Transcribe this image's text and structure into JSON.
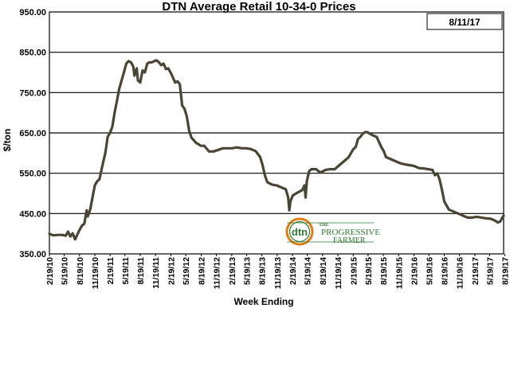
{
  "colors": {
    "line": "#4a4535",
    "grid": "#000000",
    "logo_green": "#2e7d32",
    "logo_orange": "#e07b16"
  },
  "badge": {
    "date": "8/11/17"
  },
  "logo": {
    "circle_text": "dtn",
    "brand_prefix": "THE",
    "brand_line1": "PROGRESSIVE",
    "brand_line2": "FARMER",
    "icon": "dtn-progressive-farmer-logo"
  },
  "chart_data": {
    "type": "line",
    "title": "DTN Average Retail 10-34-0 Prices",
    "xlabel": "Week Ending",
    "ylabel": "$/ton",
    "ylim": [
      350,
      950
    ],
    "yticks": [
      "350.00",
      "450.00",
      "550.00",
      "650.00",
      "750.00",
      "850.00",
      "950.00"
    ],
    "xlim": [
      "2010-02-19",
      "2017-08-11"
    ],
    "xticks": [
      "2/19/10",
      "5/19/10",
      "8/19/10",
      "11/19/10",
      "2/19/11",
      "5/19/11",
      "8/19/11",
      "11/19/11",
      "2/19/12",
      "5/19/12",
      "8/19/12",
      "11/19/12",
      "2/19/13",
      "5/19/13",
      "8/19/13",
      "11/19/13",
      "2/19/14",
      "5/19/14",
      "8/19/14",
      "11/19/14",
      "2/19/15",
      "5/19/15",
      "8/19/15",
      "11/19/15",
      "2/19/16",
      "5/19/16",
      "8/19/16",
      "11/19/16",
      "2/19/17",
      "5/19/17",
      "8/19/17"
    ],
    "grid": "horizontal",
    "series": [
      {
        "points": [
          [
            "2010-02-19",
            400
          ],
          [
            "2010-03-12",
            396
          ],
          [
            "2010-04-09",
            397
          ],
          [
            "2010-05-07",
            397
          ],
          [
            "2010-05-28",
            395
          ],
          [
            "2010-06-11",
            405
          ],
          [
            "2010-06-25",
            393
          ],
          [
            "2010-07-09",
            401
          ],
          [
            "2010-07-23",
            386
          ],
          [
            "2010-08-06",
            398
          ],
          [
            "2010-08-20",
            410
          ],
          [
            "2010-09-03",
            420
          ],
          [
            "2010-09-17",
            425
          ],
          [
            "2010-10-01",
            458
          ],
          [
            "2010-10-08",
            443
          ],
          [
            "2010-10-22",
            460
          ],
          [
            "2010-11-05",
            490
          ],
          [
            "2010-11-19",
            520
          ],
          [
            "2010-12-03",
            530
          ],
          [
            "2010-12-17",
            535
          ],
          [
            "2011-01-07",
            575
          ],
          [
            "2011-01-21",
            600
          ],
          [
            "2011-02-04",
            640
          ],
          [
            "2011-02-18",
            650
          ],
          [
            "2011-03-04",
            665
          ],
          [
            "2011-03-18",
            700
          ],
          [
            "2011-04-01",
            730
          ],
          [
            "2011-04-15",
            760
          ],
          [
            "2011-04-29",
            780
          ],
          [
            "2011-05-13",
            800
          ],
          [
            "2011-05-27",
            822
          ],
          [
            "2011-06-10",
            828
          ],
          [
            "2011-06-24",
            825
          ],
          [
            "2011-07-08",
            815
          ],
          [
            "2011-07-15",
            792
          ],
          [
            "2011-07-29",
            810
          ],
          [
            "2011-08-05",
            780
          ],
          [
            "2011-08-19",
            775
          ],
          [
            "2011-09-02",
            805
          ],
          [
            "2011-09-16",
            800
          ],
          [
            "2011-09-30",
            822
          ],
          [
            "2011-10-14",
            825
          ],
          [
            "2011-10-28",
            825
          ],
          [
            "2011-11-11",
            828
          ],
          [
            "2011-11-25",
            830
          ],
          [
            "2011-12-09",
            825
          ],
          [
            "2011-12-23",
            818
          ],
          [
            "2012-01-06",
            822
          ],
          [
            "2012-01-20",
            808
          ],
          [
            "2012-02-03",
            810
          ],
          [
            "2012-02-17",
            800
          ],
          [
            "2012-03-02",
            788
          ],
          [
            "2012-03-16",
            775
          ],
          [
            "2012-03-30",
            778
          ],
          [
            "2012-04-13",
            770
          ],
          [
            "2012-04-27",
            718
          ],
          [
            "2012-05-11",
            710
          ],
          [
            "2012-05-25",
            690
          ],
          [
            "2012-06-08",
            655
          ],
          [
            "2012-06-22",
            638
          ],
          [
            "2012-07-06",
            632
          ],
          [
            "2012-07-20",
            625
          ],
          [
            "2012-08-03",
            622
          ],
          [
            "2012-08-17",
            618
          ],
          [
            "2012-09-07",
            618
          ],
          [
            "2012-10-05",
            604
          ],
          [
            "2012-11-02",
            604
          ],
          [
            "2012-11-30",
            608
          ],
          [
            "2012-12-28",
            612
          ],
          [
            "2013-01-25",
            612
          ],
          [
            "2013-02-22",
            612
          ],
          [
            "2013-03-22",
            614
          ],
          [
            "2013-04-19",
            612
          ],
          [
            "2013-05-17",
            612
          ],
          [
            "2013-06-14",
            610
          ],
          [
            "2013-07-12",
            605
          ],
          [
            "2013-08-09",
            590
          ],
          [
            "2013-08-23",
            570
          ],
          [
            "2013-09-06",
            545
          ],
          [
            "2013-09-20",
            528
          ],
          [
            "2013-10-18",
            522
          ],
          [
            "2013-11-15",
            520
          ],
          [
            "2013-12-13",
            515
          ],
          [
            "2014-01-10",
            510
          ],
          [
            "2014-01-24",
            490
          ],
          [
            "2014-01-31",
            458
          ],
          [
            "2014-02-07",
            480
          ],
          [
            "2014-02-21",
            495
          ],
          [
            "2014-03-21",
            502
          ],
          [
            "2014-04-18",
            508
          ],
          [
            "2014-05-02",
            520
          ],
          [
            "2014-05-09",
            490
          ],
          [
            "2014-05-16",
            530
          ],
          [
            "2014-05-30",
            555
          ],
          [
            "2014-06-13",
            560
          ],
          [
            "2014-07-11",
            560
          ],
          [
            "2014-07-25",
            555
          ],
          [
            "2014-08-08",
            552
          ],
          [
            "2014-09-05",
            558
          ],
          [
            "2014-10-03",
            560
          ],
          [
            "2014-10-31",
            560
          ],
          [
            "2014-11-28",
            570
          ],
          [
            "2014-12-26",
            580
          ],
          [
            "2015-01-23",
            590
          ],
          [
            "2015-02-06",
            600
          ],
          [
            "2015-02-20",
            610
          ],
          [
            "2015-03-06",
            615
          ],
          [
            "2015-03-20",
            635
          ],
          [
            "2015-04-03",
            640
          ],
          [
            "2015-04-17",
            648
          ],
          [
            "2015-05-01",
            652
          ],
          [
            "2015-05-15",
            652
          ],
          [
            "2015-05-29",
            648
          ],
          [
            "2015-06-12",
            645
          ],
          [
            "2015-07-10",
            640
          ],
          [
            "2015-08-07",
            615
          ],
          [
            "2015-08-21",
            605
          ],
          [
            "2015-09-04",
            590
          ],
          [
            "2015-10-02",
            585
          ],
          [
            "2015-10-30",
            580
          ],
          [
            "2015-11-27",
            575
          ],
          [
            "2015-12-25",
            572
          ],
          [
            "2016-01-22",
            570
          ],
          [
            "2016-02-19",
            568
          ],
          [
            "2016-03-18",
            563
          ],
          [
            "2016-04-15",
            562
          ],
          [
            "2016-05-13",
            560
          ],
          [
            "2016-06-10",
            558
          ],
          [
            "2016-06-24",
            545
          ],
          [
            "2016-07-08",
            550
          ],
          [
            "2016-07-22",
            535
          ],
          [
            "2016-08-05",
            510
          ],
          [
            "2016-08-19",
            480
          ],
          [
            "2016-09-02",
            470
          ],
          [
            "2016-09-16",
            460
          ],
          [
            "2016-10-14",
            455
          ],
          [
            "2016-11-11",
            450
          ],
          [
            "2016-12-09",
            445
          ],
          [
            "2017-01-06",
            440
          ],
          [
            "2017-02-03",
            440
          ],
          [
            "2017-03-03",
            442
          ],
          [
            "2017-03-31",
            440
          ],
          [
            "2017-04-28",
            438
          ],
          [
            "2017-05-26",
            437
          ],
          [
            "2017-06-23",
            432
          ],
          [
            "2017-07-07",
            428
          ],
          [
            "2017-07-21",
            430
          ],
          [
            "2017-08-04",
            440
          ],
          [
            "2017-08-11",
            445
          ]
        ]
      }
    ]
  }
}
